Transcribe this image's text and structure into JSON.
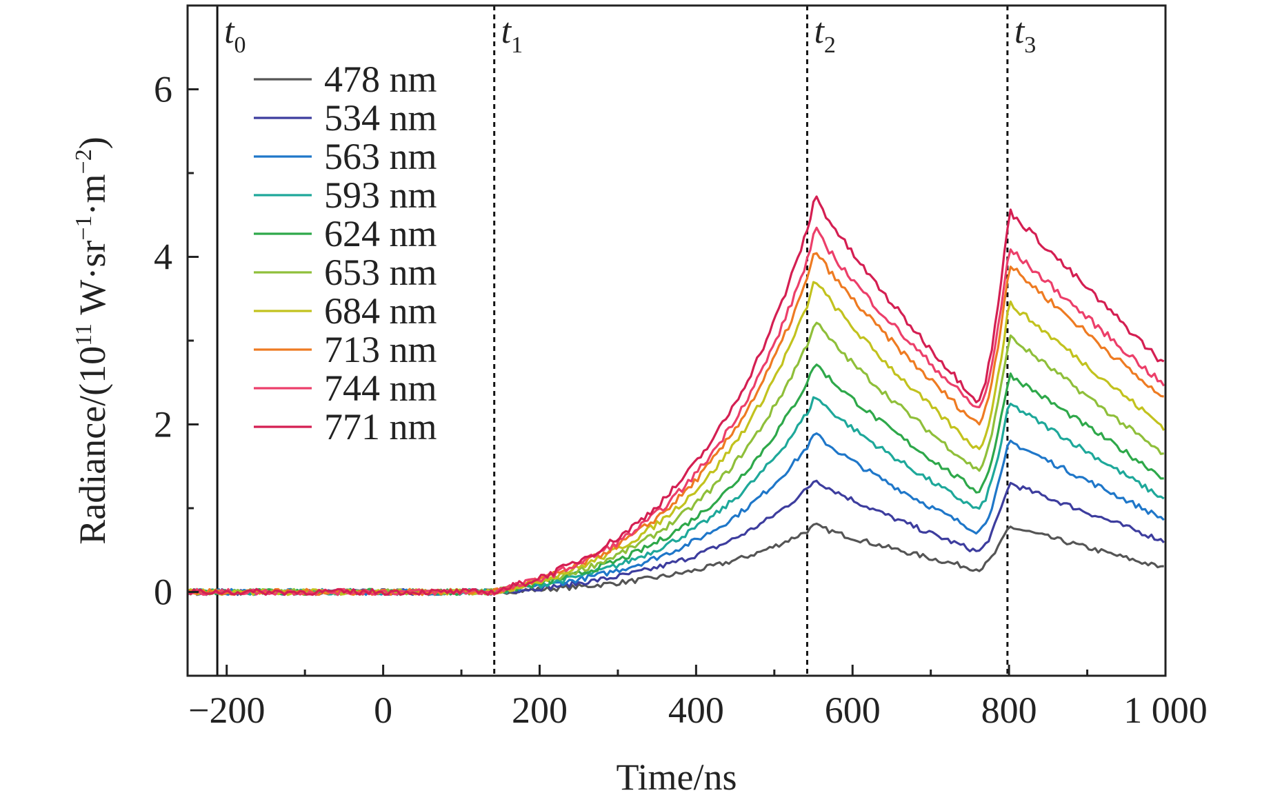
{
  "chart_data": {
    "type": "line",
    "title": "",
    "xlabel": "Time/ns",
    "ylabel": "Radiance/(10",
    "ylabel_sup1": "11",
    "ylabel_mid": " W·sr",
    "ylabel_sup2": "−1",
    "ylabel_mid2": "·m",
    "ylabel_sup3": "−2",
    "ylabel_end": ")",
    "xlim": [
      -250,
      1000
    ],
    "ylim": [
      -1,
      7
    ],
    "xticks": [
      -200,
      0,
      200,
      400,
      600,
      800,
      1000
    ],
    "xtick_labels": [
      "−200",
      "0",
      "200",
      "400",
      "600",
      "800",
      "1 000"
    ],
    "yticks": [
      0,
      2,
      4,
      6
    ],
    "ytick_labels": [
      "0",
      "2",
      "4",
      "6"
    ],
    "grid": false,
    "legend_position": "top-left",
    "markers": [
      {
        "label": "t",
        "sub": "0",
        "x": -212,
        "style": "solid"
      },
      {
        "label": "t",
        "sub": "1",
        "x": 142,
        "style": "dotted"
      },
      {
        "label": "t",
        "sub": "2",
        "x": 542,
        "style": "dotted"
      },
      {
        "label": "t",
        "sub": "3",
        "x": 798,
        "style": "dotted"
      }
    ],
    "series": [
      {
        "name": "478 nm",
        "color": "#555555",
        "peak1": 0.8,
        "trough": 0.27,
        "peak2": 0.78,
        "end": 0.28
      },
      {
        "name": "534 nm",
        "color": "#3d3d9e",
        "peak1": 1.35,
        "trough": 0.48,
        "peak2": 1.3,
        "end": 0.6
      },
      {
        "name": "563 nm",
        "color": "#1f77c9",
        "peak1": 1.9,
        "trough": 0.72,
        "peak2": 1.8,
        "end": 0.86
      },
      {
        "name": "593 nm",
        "color": "#1ea89a",
        "peak1": 2.35,
        "trough": 0.98,
        "peak2": 2.25,
        "end": 1.1
      },
      {
        "name": "624 nm",
        "color": "#2ea84a",
        "peak1": 2.75,
        "trough": 1.2,
        "peak2": 2.6,
        "end": 1.35
      },
      {
        "name": "653 nm",
        "color": "#8fbf3a",
        "peak1": 3.25,
        "trough": 1.45,
        "peak2": 3.05,
        "end": 1.62
      },
      {
        "name": "684 nm",
        "color": "#c2c21e",
        "peak1": 3.75,
        "trough": 1.7,
        "peak2": 3.45,
        "end": 1.95
      },
      {
        "name": "713 nm",
        "color": "#ee7b22",
        "peak1": 4.1,
        "trough": 2.0,
        "peak2": 3.9,
        "end": 2.28
      },
      {
        "name": "744 nm",
        "color": "#ec3f6a",
        "peak1": 4.35,
        "trough": 2.18,
        "peak2": 4.1,
        "end": 2.45
      },
      {
        "name": "771 nm",
        "color": "#d41f52",
        "peak1": 4.75,
        "trough": 2.28,
        "peak2": 4.55,
        "end": 2.7
      }
    ]
  }
}
